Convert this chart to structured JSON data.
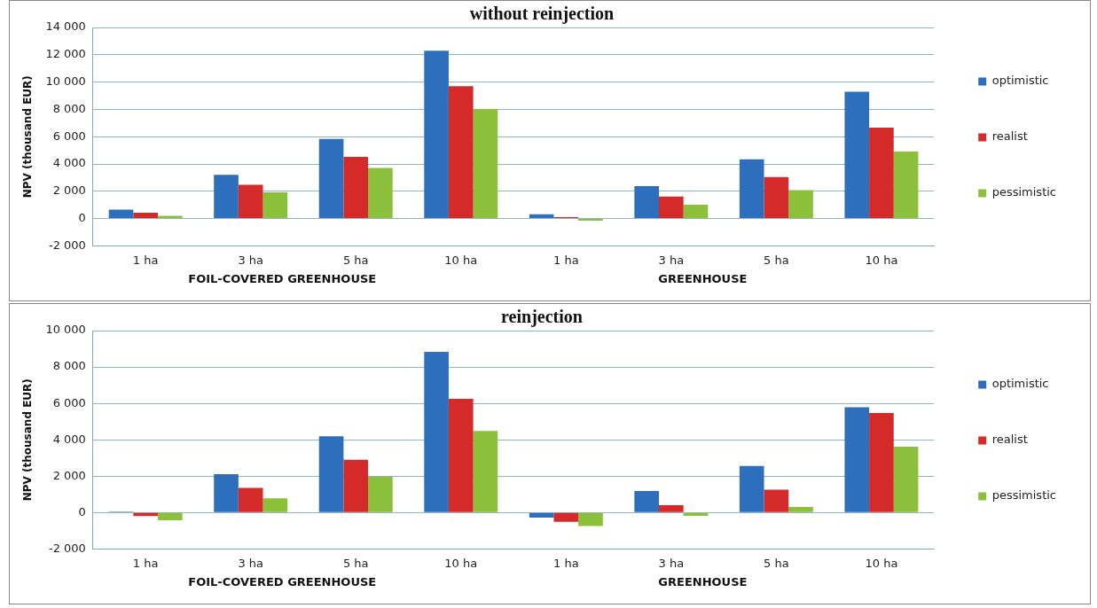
{
  "chart_data": [
    {
      "type": "bar",
      "title": "without reinjection",
      "ylabel": "NPV (thousand EUR)",
      "categories": [
        "1 ha",
        "3 ha",
        "5 ha",
        "10 ha",
        "1 ha",
        "3 ha",
        "5 ha",
        "10 ha"
      ],
      "series": [
        {
          "name": "optimistic",
          "color": "#2e6fbd",
          "values": [
            650,
            3210,
            5840,
            12300,
            320,
            2380,
            4340,
            9300
          ]
        },
        {
          "name": "realist",
          "color": "#d42a2a",
          "values": [
            430,
            2470,
            4520,
            9700,
            100,
            1620,
            3040,
            6660
          ]
        },
        {
          "name": "pessimistic",
          "color": "#8cbf3a",
          "values": [
            200,
            1920,
            3710,
            8030,
            -150,
            1020,
            2090,
            4910
          ]
        }
      ],
      "ylim": [
        -2000,
        14000
      ],
      "yticks": [
        {
          "value": -2000,
          "label": "-2 000"
        },
        {
          "value": 0,
          "label": "0"
        },
        {
          "value": 2000,
          "label": "2 000"
        },
        {
          "value": 4000,
          "label": "4 000"
        },
        {
          "value": 6000,
          "label": "6 000"
        },
        {
          "value": 8000,
          "label": "8 000"
        },
        {
          "value": 10000,
          "label": "10 000"
        },
        {
          "value": 12000,
          "label": "12 000"
        },
        {
          "value": 14000,
          "label": "14 000"
        }
      ],
      "grid": "y",
      "legend": "right",
      "annotations": [
        "FOIL-COVERED GREENHOUSE",
        "GREENHOUSE"
      ]
    },
    {
      "type": "bar",
      "title": "reinjection",
      "ylabel": "NPV (thousand EUR)",
      "categories": [
        "1 ha",
        "3 ha",
        "5 ha",
        "10 ha",
        "1 ha",
        "3 ha",
        "5 ha",
        "10 ha"
      ],
      "series": [
        {
          "name": "optimistic",
          "color": "#2e6fbd",
          "values": [
            50,
            2110,
            4190,
            8830,
            -280,
            1190,
            2560,
            5790
          ]
        },
        {
          "name": "realist",
          "color": "#d42a2a",
          "values": [
            -190,
            1350,
            2900,
            6250,
            -510,
            410,
            1260,
            5470
          ]
        },
        {
          "name": "pessimistic",
          "color": "#8cbf3a",
          "values": [
            -420,
            780,
            1980,
            4480,
            -740,
            -180,
            310,
            3620
          ]
        }
      ],
      "ylim": [
        -2000,
        10000
      ],
      "yticks": [
        {
          "value": -2000,
          "label": "-2 000"
        },
        {
          "value": 0,
          "label": "0"
        },
        {
          "value": 2000,
          "label": "2 000"
        },
        {
          "value": 4000,
          "label": "4 000"
        },
        {
          "value": 6000,
          "label": "6 000"
        },
        {
          "value": 8000,
          "label": "8 000"
        },
        {
          "value": 10000,
          "label": "10 000"
        }
      ],
      "grid": "y",
      "legend": "right",
      "annotations": [
        "FOIL-COVERED GREENHOUSE",
        "GREENHOUSE"
      ]
    }
  ]
}
